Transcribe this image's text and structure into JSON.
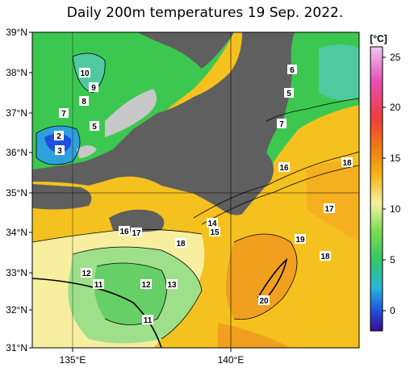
{
  "title": "Daily 200m temperatures 19 Sep. 2022.",
  "map": {
    "lat_labels": [
      "39°N",
      "38°N",
      "37°N",
      "36°N",
      "35°N",
      "34°N",
      "33°N",
      "32°N",
      "31°N"
    ],
    "lon_labels": [
      "135°E",
      "140°E"
    ],
    "contour_labels": [
      "10",
      "9",
      "8",
      "7",
      "2",
      "3",
      "5",
      "6",
      "5",
      "7",
      "16",
      "18",
      "17",
      "14",
      "15",
      "16",
      "17",
      "18",
      "19",
      "18",
      "12",
      "11",
      "12",
      "13",
      "11",
      "20"
    ]
  },
  "colorbar": {
    "unit": "[°C]",
    "ticks": [
      "25",
      "20",
      "15",
      "10",
      "5",
      "0"
    ],
    "colors": [
      "#e6a0f0",
      "#f03c78",
      "#f06a1e",
      "#f59b14",
      "#f5c11e",
      "#f5e03c",
      "#f7f3a0",
      "#c8f0a0",
      "#78dc78",
      "#3cc850",
      "#50c8a0",
      "#3cb4dc",
      "#1e78dc",
      "#1e3cc8",
      "#3c14b4"
    ]
  },
  "colors": {
    "land": "#5f5f5f",
    "nodata": "#c8c8c8",
    "cold": "#3cc850",
    "warm": "#f5c11e"
  }
}
